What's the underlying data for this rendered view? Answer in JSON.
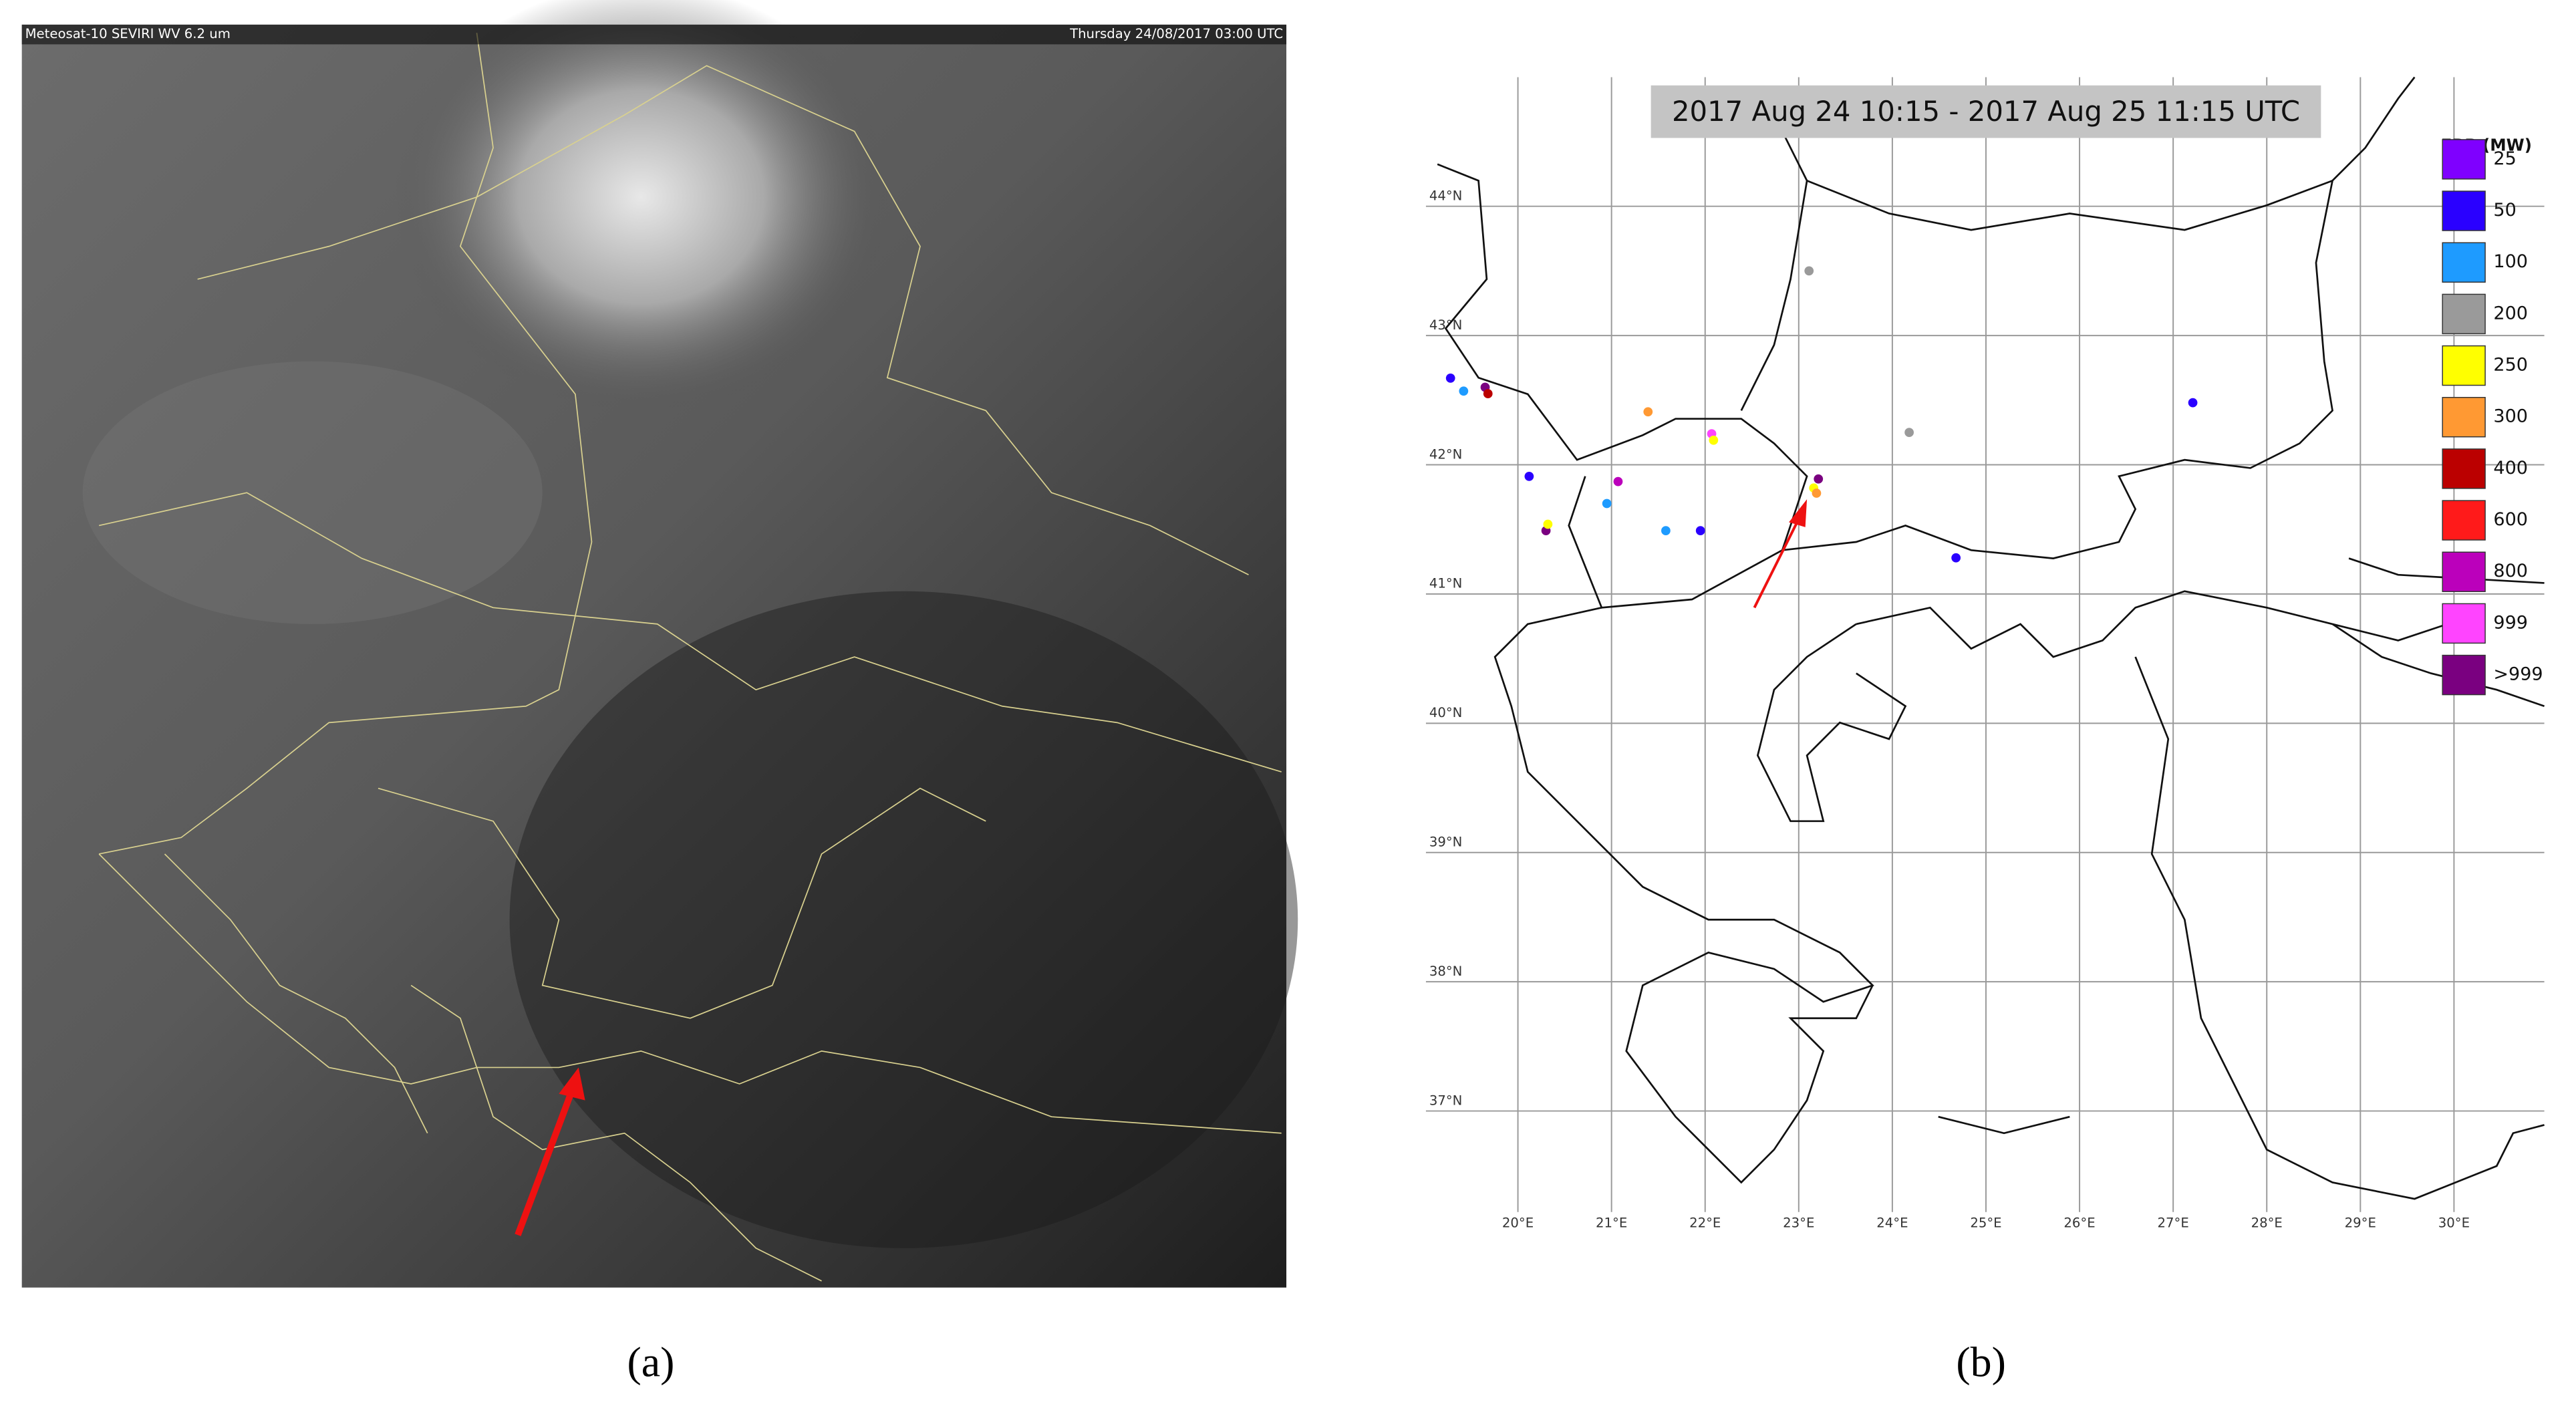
{
  "panel_a": {
    "sensor": "Meteosat-10 SEVIRI WV 6.2 um",
    "timestamp": "Thursday 24/08/2017 03:00 UTC",
    "caption": "(a)"
  },
  "panel_b": {
    "title": "2017 Aug 24 10:15 - 2017 Aug 25 11:15 UTC",
    "caption": "(b)",
    "legend_title": "FRP (MW)",
    "legend": [
      {
        "label": "25",
        "color": "#7f00ff"
      },
      {
        "label": "50",
        "color": "#2a00ff"
      },
      {
        "label": "100",
        "color": "#1e9bff"
      },
      {
        "label": "200",
        "color": "#9a9a9a"
      },
      {
        "label": "250",
        "color": "#ffff00"
      },
      {
        "label": "300",
        "color": "#ff9933"
      },
      {
        "label": "400",
        "color": "#bb0000"
      },
      {
        "label": "600",
        "color": "#ff1a1a"
      },
      {
        "label": "800",
        "color": "#bb00bb"
      },
      {
        "label": "999",
        "color": "#ff44ff"
      },
      {
        "label": ">999",
        "color": "#7a0080"
      }
    ],
    "lat_ticks": [
      {
        "value": 44,
        "label": "44°N"
      },
      {
        "value": 43,
        "label": "43°N"
      },
      {
        "value": 42,
        "label": "42°N"
      },
      {
        "value": 41,
        "label": "41°N"
      },
      {
        "value": 40,
        "label": "40°N"
      },
      {
        "value": 39,
        "label": "39°N"
      },
      {
        "value": 38,
        "label": "38°N"
      },
      {
        "value": 37,
        "label": "37°N"
      }
    ],
    "lon_ticks": [
      {
        "value": 20,
        "label": "20°E"
      },
      {
        "value": 21,
        "label": "21°E"
      },
      {
        "value": 22,
        "label": "22°E"
      },
      {
        "value": 23,
        "label": "23°E"
      },
      {
        "value": 24,
        "label": "24°E"
      },
      {
        "value": 25,
        "label": "25°E"
      },
      {
        "value": 26,
        "label": "26°E"
      },
      {
        "value": 27,
        "label": "27°E"
      },
      {
        "value": 28,
        "label": "28°E"
      },
      {
        "value": 29,
        "label": "29°E"
      },
      {
        "value": 30,
        "label": "30°E"
      }
    ],
    "fires": [
      {
        "lon": 19.28,
        "lat": 42.67,
        "color": "#2a00ff"
      },
      {
        "lon": 19.42,
        "lat": 42.57,
        "color": "#1e9bff"
      },
      {
        "lon": 19.65,
        "lat": 42.6,
        "color": "#7a0080"
      },
      {
        "lon": 19.68,
        "lat": 42.55,
        "color": "#bb0000"
      },
      {
        "lon": 20.12,
        "lat": 41.91,
        "color": "#2a00ff"
      },
      {
        "lon": 20.3,
        "lat": 41.49,
        "color": "#7a0080"
      },
      {
        "lon": 20.32,
        "lat": 41.54,
        "color": "#ffff00"
      },
      {
        "lon": 20.95,
        "lat": 41.7,
        "color": "#1e9bff"
      },
      {
        "lon": 21.07,
        "lat": 41.87,
        "color": "#bb00bb"
      },
      {
        "lon": 21.39,
        "lat": 42.41,
        "color": "#ff9933"
      },
      {
        "lon": 21.58,
        "lat": 41.49,
        "color": "#1e9bff"
      },
      {
        "lon": 21.95,
        "lat": 41.49,
        "color": "#2a00ff"
      },
      {
        "lon": 22.07,
        "lat": 42.24,
        "color": "#ff44ff"
      },
      {
        "lon": 22.09,
        "lat": 42.19,
        "color": "#ffff00"
      },
      {
        "lon": 23.11,
        "lat": 43.5,
        "color": "#9a9a9a"
      },
      {
        "lon": 23.21,
        "lat": 41.89,
        "color": "#7a0080"
      },
      {
        "lon": 23.16,
        "lat": 41.82,
        "color": "#ffff00"
      },
      {
        "lon": 23.19,
        "lat": 41.78,
        "color": "#ff9933"
      },
      {
        "lon": 24.18,
        "lat": 42.25,
        "color": "#9a9a9a"
      },
      {
        "lon": 24.68,
        "lat": 41.28,
        "color": "#2a00ff"
      },
      {
        "lon": 27.21,
        "lat": 42.48,
        "color": "#2a00ff"
      }
    ]
  }
}
